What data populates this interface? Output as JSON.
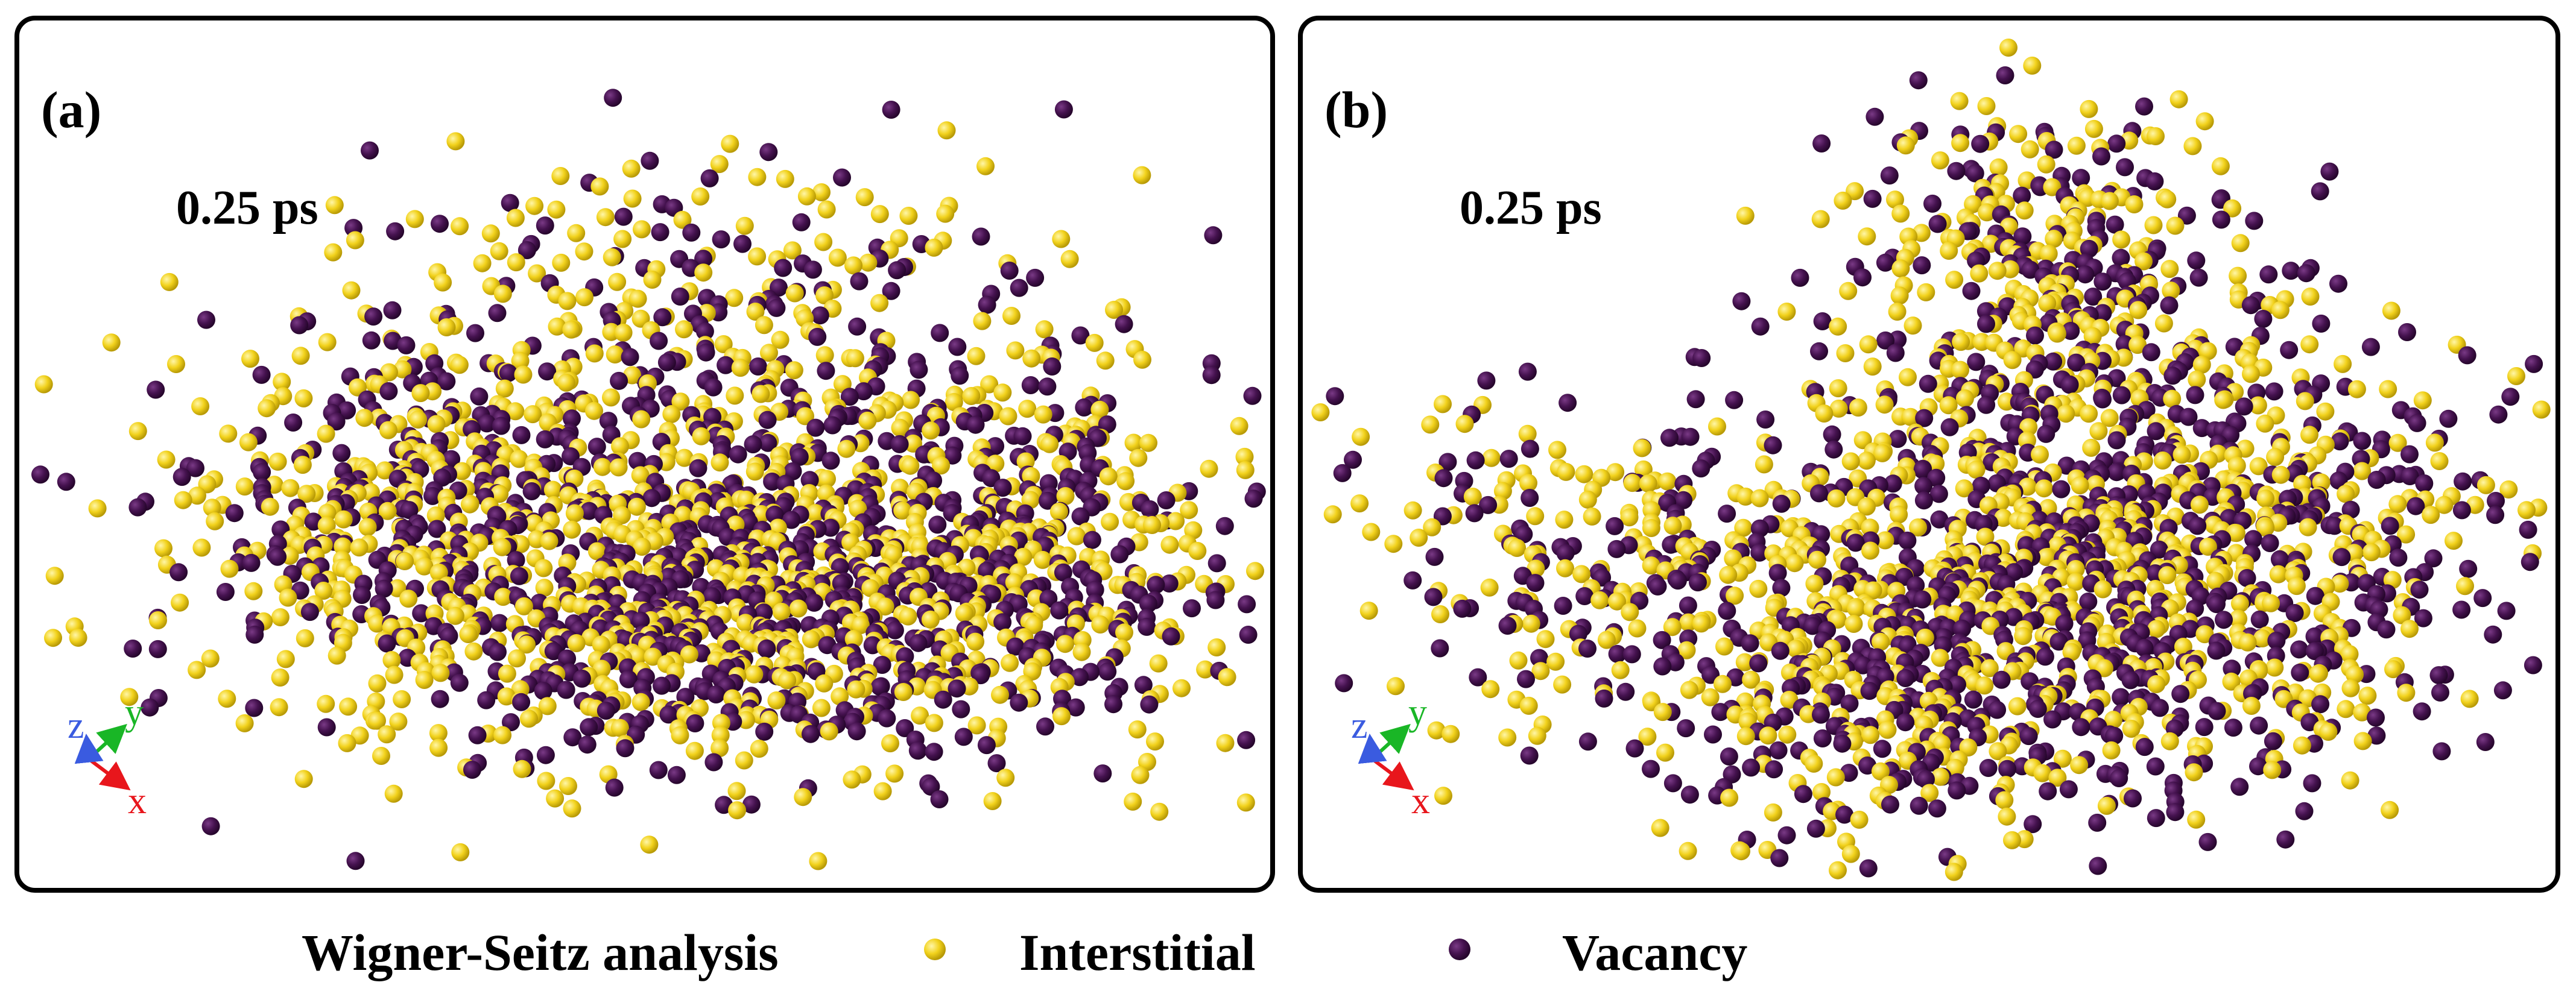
{
  "panels": [
    {
      "label": "(a)",
      "time": "0.25 ps"
    },
    {
      "label": "(b)",
      "time": "0.25 ps"
    }
  ],
  "axes": {
    "z": "z",
    "y": "y",
    "x": "x",
    "colors": {
      "x": "#e8161c",
      "y": "#19b626",
      "z": "#3a5be0"
    }
  },
  "legend": {
    "title": "Wigner-Seitz analysis",
    "interstitial": "Interstitial",
    "vacancy": "Vacancy"
  },
  "colors": {
    "interstitial": "#f2d21c",
    "interstitial_highlight": "#fff6a8",
    "interstitial_shade": "#b89a06",
    "vacancy": "#45124f",
    "vacancy_highlight": "#7a3a86",
    "vacancy_shade": "#26062c"
  }
}
